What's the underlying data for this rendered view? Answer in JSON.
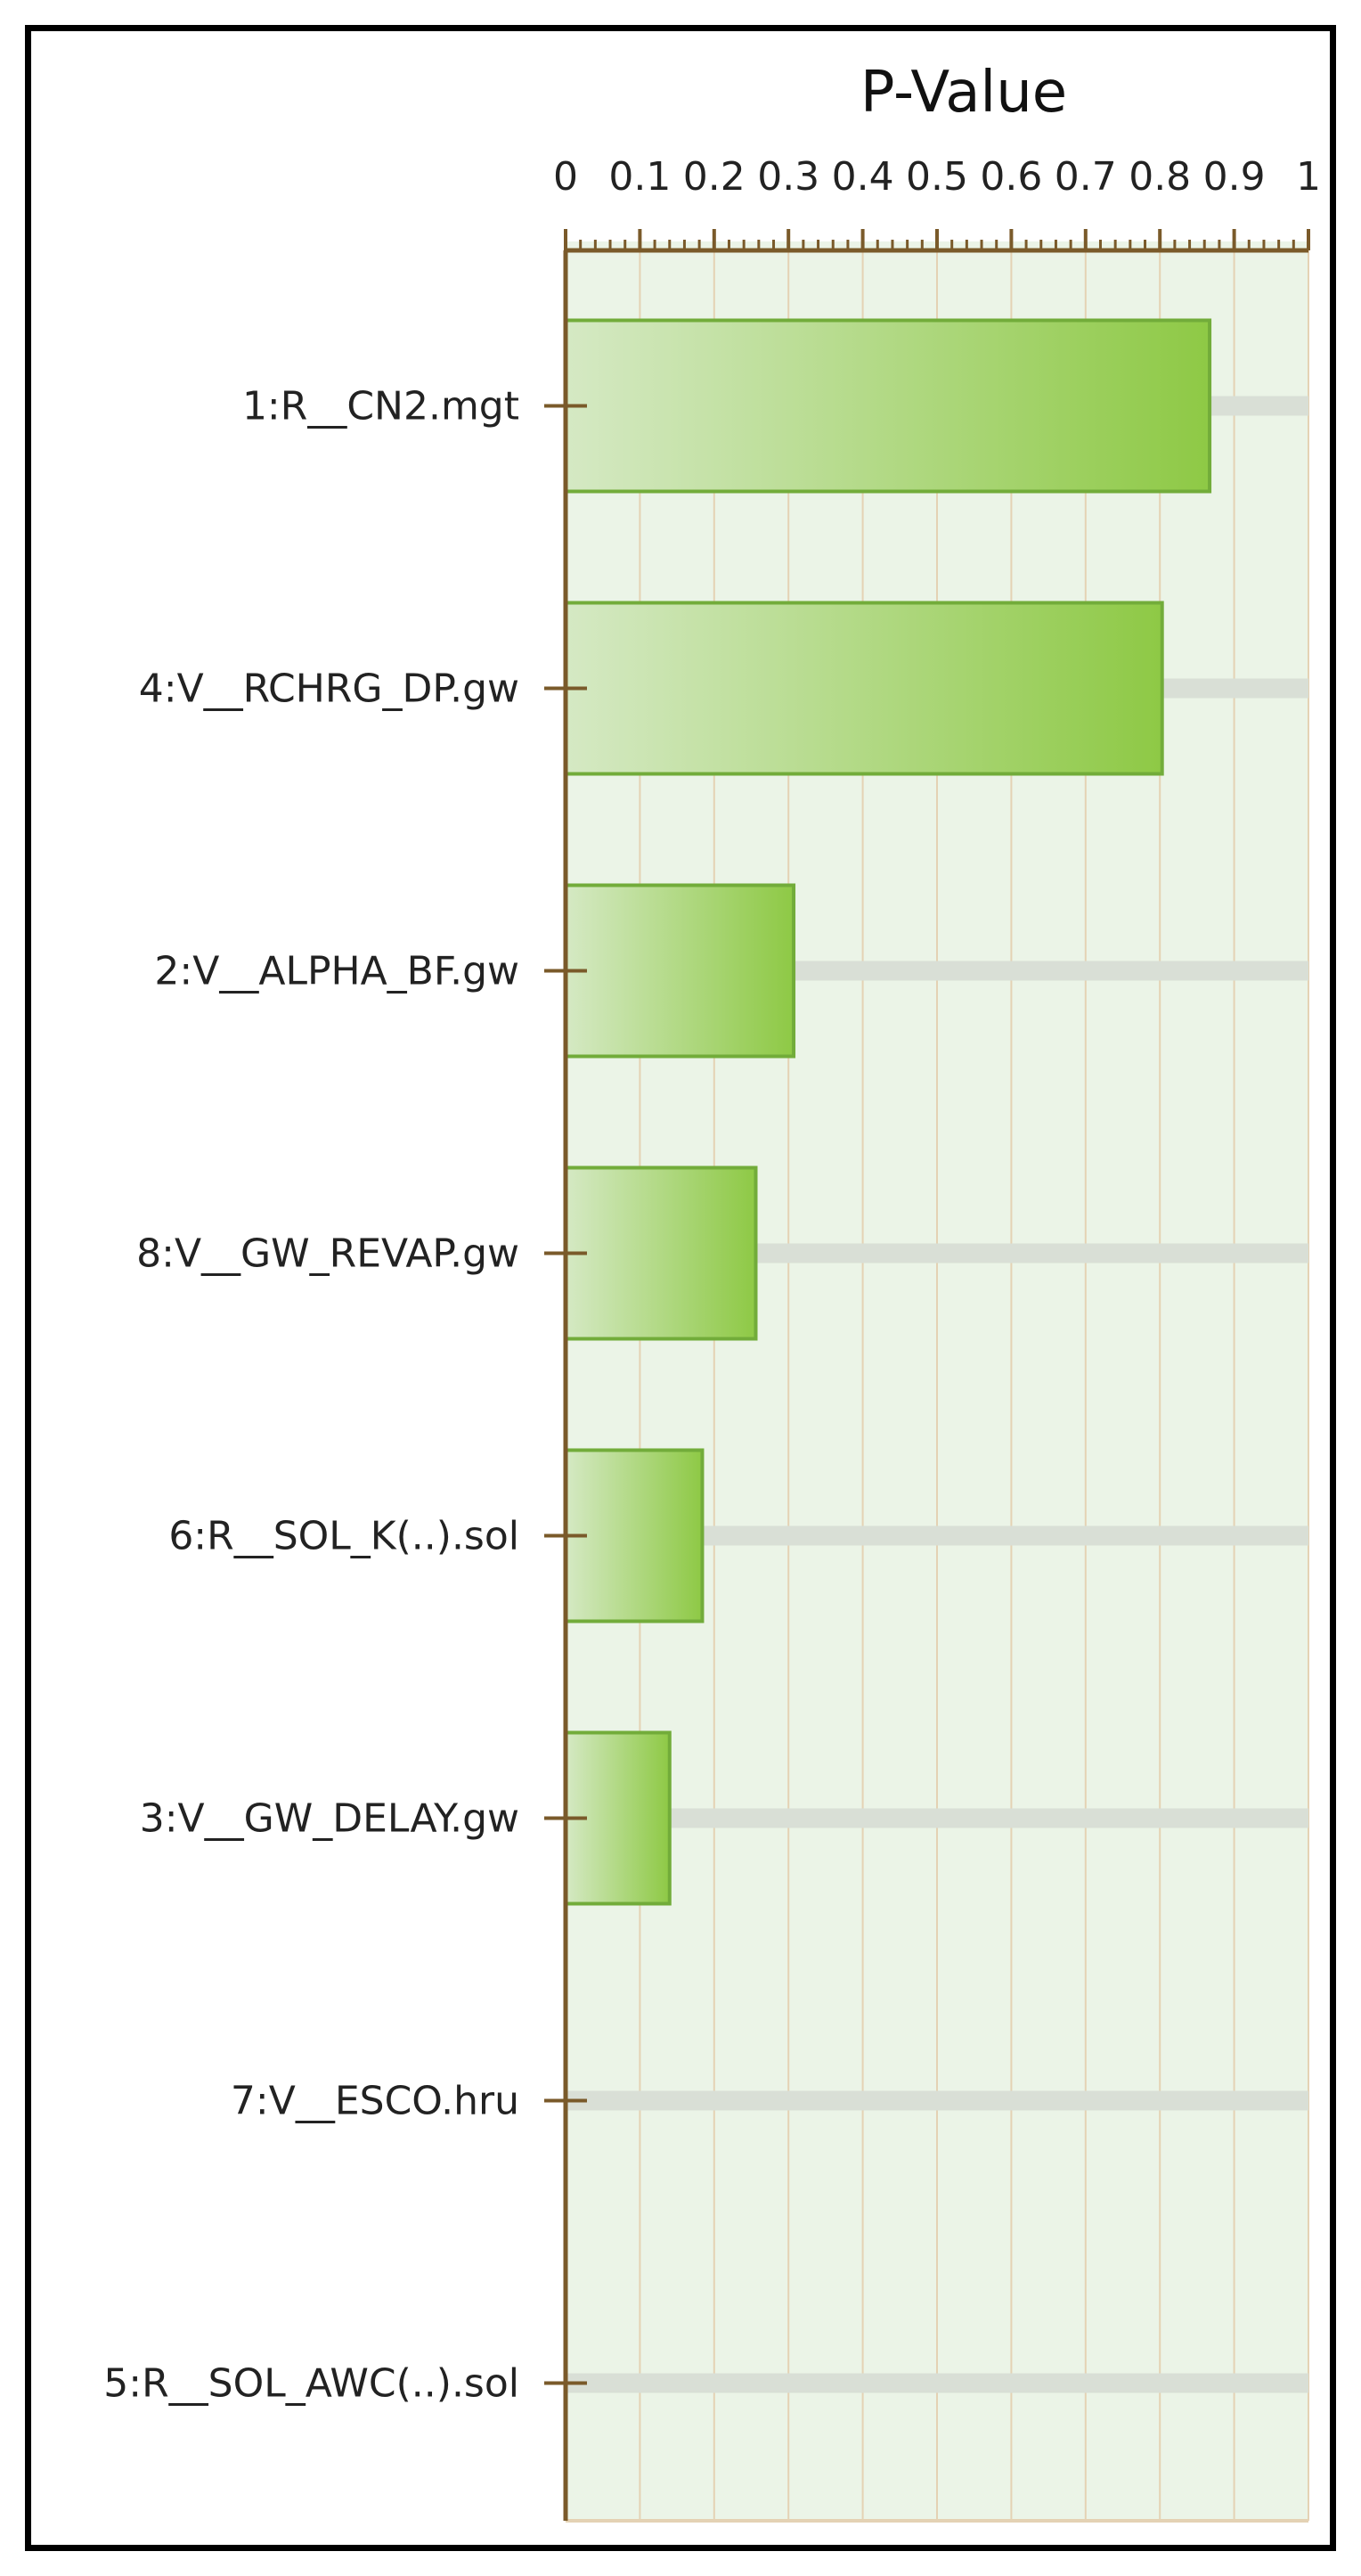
{
  "chart_data": {
    "type": "bar",
    "orientation": "horizontal",
    "title": "P-Value",
    "xlabel": "",
    "ylabel": "",
    "xlim": [
      0,
      1
    ],
    "x_ticks": [
      0,
      0.1,
      0.2,
      0.3,
      0.4,
      0.5,
      0.6,
      0.7,
      0.8,
      0.9,
      1
    ],
    "x_tick_labels": [
      "0",
      "0.1",
      "0.2",
      "0.3",
      "0.4",
      "0.5",
      "0.6",
      "0.7",
      "0.8",
      "0.9",
      "1"
    ],
    "x_axis_position": "top",
    "grid": true,
    "legend": "none",
    "categories": [
      "1:R__CN2.mgt",
      "4:V__RCHRG_DP.gw",
      "2:V__ALPHA_BF.gw",
      "8:V__GW_REVAP.gw",
      "6:R__SOL_K(..).sol",
      "3:V__GW_DELAY.gw",
      "7:V__ESCO.hru",
      "5:R__SOL_AWC(..).sol"
    ],
    "values": [
      0.867,
      0.803,
      0.307,
      0.256,
      0.184,
      0.14,
      0,
      0
    ]
  },
  "colors": {
    "plot_background": "#ebf4e7",
    "grid_line": "#e4d2b4",
    "axis": "#7a5a2a",
    "bar_fill_start": "#d5e9c4",
    "bar_fill_end": "#8ec945",
    "bar_stroke": "#72ac3a",
    "track": "#d9dfd6"
  }
}
